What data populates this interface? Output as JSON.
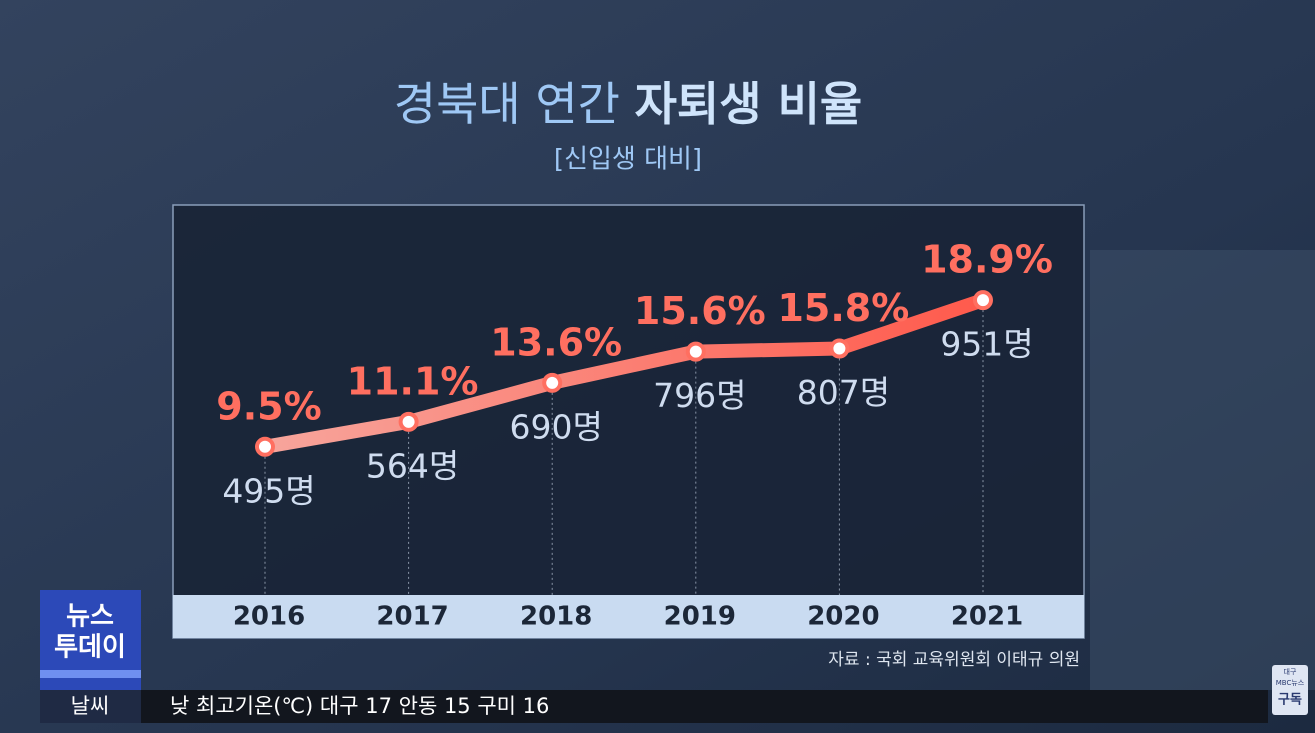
{
  "header": {
    "title_plain": "경북대 연간",
    "title_bold": "자퇴생 비율",
    "subtitle": "[신입생 대비]"
  },
  "chart_data": {
    "type": "line",
    "categories": [
      "2016",
      "2017",
      "2018",
      "2019",
      "2020",
      "2021"
    ],
    "values": [
      9.5,
      11.1,
      13.6,
      15.6,
      15.8,
      18.9
    ],
    "value_labels": [
      "9.5%",
      "11.1%",
      "13.6%",
      "15.6%",
      "15.8%",
      "18.9%"
    ],
    "count_labels": [
      "495명",
      "564명",
      "690명",
      "796명",
      "807명",
      "951명"
    ],
    "color": "#ff6f60",
    "ylim": [
      0,
      25
    ],
    "source": "자료 : 국회 교육위원회 이태규 의원"
  },
  "logo": {
    "line1": "뉴스",
    "line2": "투데이"
  },
  "ticker": {
    "label": "날씨",
    "text": "낮 최고기온(℃) 대구 17 안동 15 구미 16"
  },
  "badge": {
    "line1": "대구",
    "line2": "MBC뉴스",
    "line3": "구독"
  }
}
